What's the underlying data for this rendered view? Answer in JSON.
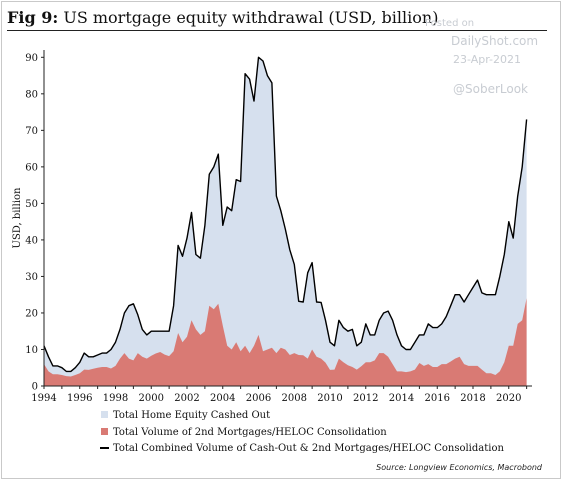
{
  "header": {
    "fig_label": "Fig 9:",
    "title_text": "US mortgage equity withdrawal (USD, billion)"
  },
  "watermark": {
    "posted": "Posted on",
    "site": "DailyShot.com",
    "date": "23-Apr-2021",
    "handle": "@SoberLook"
  },
  "source": "Source: Longview Economics, Macrobond",
  "colors": {
    "cash_out_fill": "#d6e0ee",
    "heloc_fill": "#d97a74",
    "combined_line": "#000000",
    "axis": "#222222"
  },
  "chart_data": {
    "type": "area",
    "title": "US mortgage equity withdrawal (USD, billion)",
    "ylabel": "USD, billion",
    "xlabel": "",
    "xlim": [
      1994,
      2021.3
    ],
    "ylim": [
      0,
      92
    ],
    "grid": false,
    "legend_position": "bottom",
    "x_tick_labels": [
      "1994",
      "1996",
      "1998",
      "2000",
      "2002",
      "2004",
      "2006",
      "2008",
      "2010",
      "2012",
      "2014",
      "2016",
      "2018",
      "2020"
    ],
    "y_tick_labels": [
      "0",
      "10",
      "20",
      "30",
      "40",
      "50",
      "60",
      "70",
      "80",
      "90"
    ],
    "x": [
      1994.0,
      1994.25,
      1994.5,
      1994.75,
      1995.0,
      1995.25,
      1995.5,
      1995.75,
      1996.0,
      1996.25,
      1996.5,
      1996.75,
      1997.0,
      1997.25,
      1997.5,
      1997.75,
      1998.0,
      1998.25,
      1998.5,
      1998.75,
      1999.0,
      1999.25,
      1999.5,
      1999.75,
      2000.0,
      2000.25,
      2000.5,
      2000.75,
      2001.0,
      2001.25,
      2001.5,
      2001.75,
      2002.0,
      2002.25,
      2002.5,
      2002.75,
      2003.0,
      2003.25,
      2003.5,
      2003.75,
      2004.0,
      2004.25,
      2004.5,
      2004.75,
      2005.0,
      2005.25,
      2005.5,
      2005.75,
      2006.0,
      2006.25,
      2006.5,
      2006.75,
      2007.0,
      2007.25,
      2007.5,
      2007.75,
      2008.0,
      2008.25,
      2008.5,
      2008.75,
      2009.0,
      2009.25,
      2009.5,
      2009.75,
      2010.0,
      2010.25,
      2010.5,
      2010.75,
      2011.0,
      2011.25,
      2011.5,
      2011.75,
      2012.0,
      2012.25,
      2012.5,
      2012.75,
      2013.0,
      2013.25,
      2013.5,
      2013.75,
      2014.0,
      2014.25,
      2014.5,
      2014.75,
      2015.0,
      2015.25,
      2015.5,
      2015.75,
      2016.0,
      2016.25,
      2016.5,
      2016.75,
      2017.0,
      2017.25,
      2017.5,
      2017.75,
      2018.0,
      2018.25,
      2018.5,
      2018.75,
      2019.0,
      2019.25,
      2019.5,
      2019.75,
      2020.0,
      2020.25,
      2020.5,
      2020.75,
      2021.0
    ],
    "series": [
      {
        "name": "Total Home Equity Cashed Out",
        "values": [
          5.0,
          4.0,
          2.3,
          2.3,
          2.0,
          1.3,
          1.4,
          2.0,
          3.0,
          4.5,
          3.6,
          3.3,
          3.5,
          3.8,
          3.8,
          5.2,
          6.5,
          8.0,
          11.0,
          14.5,
          15.5,
          10.5,
          7.5,
          6.5,
          6.7,
          6.1,
          5.7,
          6.4,
          6.8,
          12.5,
          24.0,
          23.5,
          27.0,
          29.5,
          20.5,
          21.0,
          29.0,
          36.0,
          39.0,
          41.0,
          27.5,
          38.0,
          38.0,
          44.5,
          46.5,
          74.5,
          75.0,
          67.0,
          76.0,
          79.5,
          75.0,
          72.5,
          43.0,
          37.5,
          33.0,
          28.8,
          24.3,
          14.7,
          14.6,
          23.5,
          23.8,
          15.0,
          15.4,
          11.6,
          7.6,
          6.5,
          10.5,
          9.5,
          9.3,
          10.3,
          6.5,
          6.6,
          10.5,
          7.5,
          7.0,
          9.0,
          11.0,
          12.5,
          12.0,
          10.0,
          7.0,
          6.2,
          6.0,
          7.5,
          7.7,
          8.5,
          11.0,
          10.8,
          10.8,
          11.0,
          13.0,
          15.3,
          17.5,
          17.0,
          17.0,
          19.5,
          21.5,
          23.5,
          21.0,
          21.5,
          21.5,
          22.0,
          26.0,
          29.5,
          34.0,
          29.5,
          35.0,
          42.0,
          49.0
        ]
      },
      {
        "name": "Total Volume of 2nd Mortgages/HELOC Consolidation",
        "values": [
          6.0,
          4.0,
          3.2,
          3.2,
          3.0,
          2.7,
          2.6,
          3.0,
          3.5,
          4.5,
          4.4,
          4.7,
          5.0,
          5.2,
          5.2,
          4.8,
          5.5,
          7.5,
          9.0,
          7.5,
          7.0,
          9.0,
          8.0,
          7.5,
          8.3,
          8.9,
          9.3,
          8.6,
          8.2,
          9.5,
          14.5,
          12.0,
          13.5,
          18.0,
          15.5,
          14.0,
          15.0,
          22.0,
          21.0,
          22.5,
          16.5,
          11.0,
          10.0,
          12.0,
          9.5,
          11.0,
          9.0,
          11.0,
          14.0,
          9.5,
          10.0,
          10.5,
          9.0,
          10.5,
          10.0,
          8.5,
          9.0,
          8.5,
          8.4,
          7.5,
          10.0,
          8.0,
          7.5,
          6.4,
          4.4,
          4.5,
          7.5,
          6.5,
          5.7,
          5.2,
          4.5,
          5.4,
          6.5,
          6.5,
          7.0,
          9.0,
          9.0,
          8.0,
          6.0,
          4.0,
          4.0,
          3.8,
          4.0,
          4.5,
          6.3,
          5.5,
          6.0,
          5.2,
          5.2,
          6.0,
          6.0,
          6.7,
          7.5,
          8.0,
          6.0,
          5.5,
          5.5,
          5.5,
          4.5,
          3.5,
          3.5,
          3.0,
          4.0,
          6.5,
          11.0,
          11.0,
          17.0,
          18.0,
          24.0
        ]
      },
      {
        "name": "Total Combined Volume of Cash-Out & 2nd Mortgages/HELOC Consolidation",
        "values": [
          11.0,
          8.0,
          5.5,
          5.5,
          5.0,
          4.0,
          4.0,
          5.0,
          6.5,
          9.0,
          8.0,
          8.0,
          8.5,
          9.0,
          9.0,
          10.0,
          12.0,
          15.5,
          20.0,
          22.0,
          22.5,
          19.5,
          15.5,
          14.0,
          15.0,
          15.0,
          15.0,
          15.0,
          15.0,
          22.0,
          38.5,
          35.5,
          40.5,
          47.5,
          36.0,
          35.0,
          44.0,
          58.0,
          60.0,
          63.5,
          44.0,
          49.0,
          48.0,
          56.5,
          56.0,
          85.5,
          84.0,
          78.0,
          90.0,
          89.0,
          85.0,
          83.0,
          52.0,
          48.0,
          43.0,
          37.3,
          33.3,
          23.2,
          23.0,
          31.0,
          33.8,
          23.0,
          22.9,
          18.0,
          12.0,
          11.0,
          18.0,
          16.0,
          15.0,
          15.5,
          11.0,
          12.0,
          17.0,
          14.0,
          14.0,
          18.0,
          20.0,
          20.5,
          18.0,
          14.0,
          11.0,
          10.0,
          10.0,
          12.0,
          14.0,
          14.0,
          17.0,
          16.0,
          16.0,
          17.0,
          19.0,
          22.0,
          25.0,
          25.0,
          23.0,
          25.0,
          27.0,
          29.0,
          25.5,
          25.0,
          25.0,
          25.0,
          30.0,
          36.0,
          45.0,
          40.5,
          52.0,
          60.0,
          73.0
        ]
      }
    ]
  }
}
